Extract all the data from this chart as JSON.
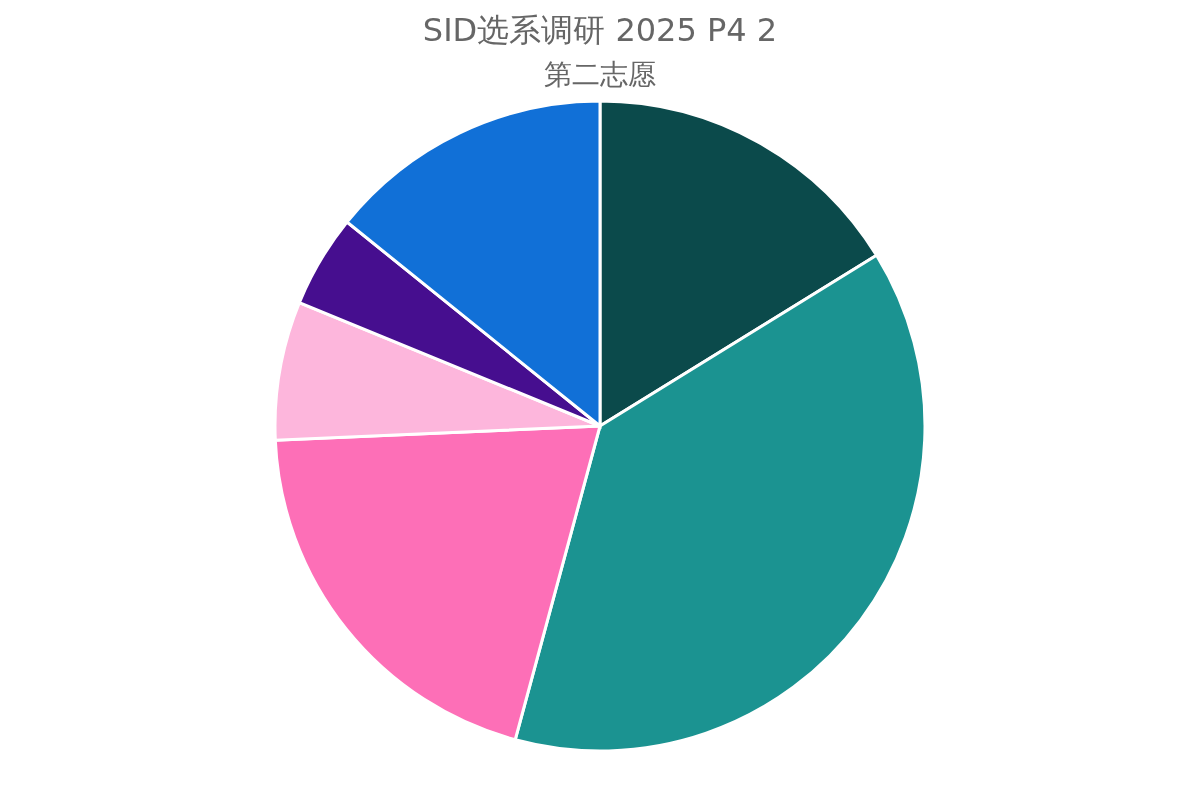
{
  "chart_data": {
    "type": "pie",
    "title": "SID选系调研 2025 P4 2",
    "subtitle": "第二志愿",
    "categories": [
      null,
      null,
      null,
      null,
      null,
      null
    ],
    "values": [
      16.2,
      38.0,
      20.1,
      6.9,
      4.6,
      14.2
    ],
    "colors": [
      "#0b4a4b",
      "#1b9391",
      "#fd6fb7",
      "#fdb6dc",
      "#460e8f",
      "#1170d7"
    ],
    "legend": false
  }
}
